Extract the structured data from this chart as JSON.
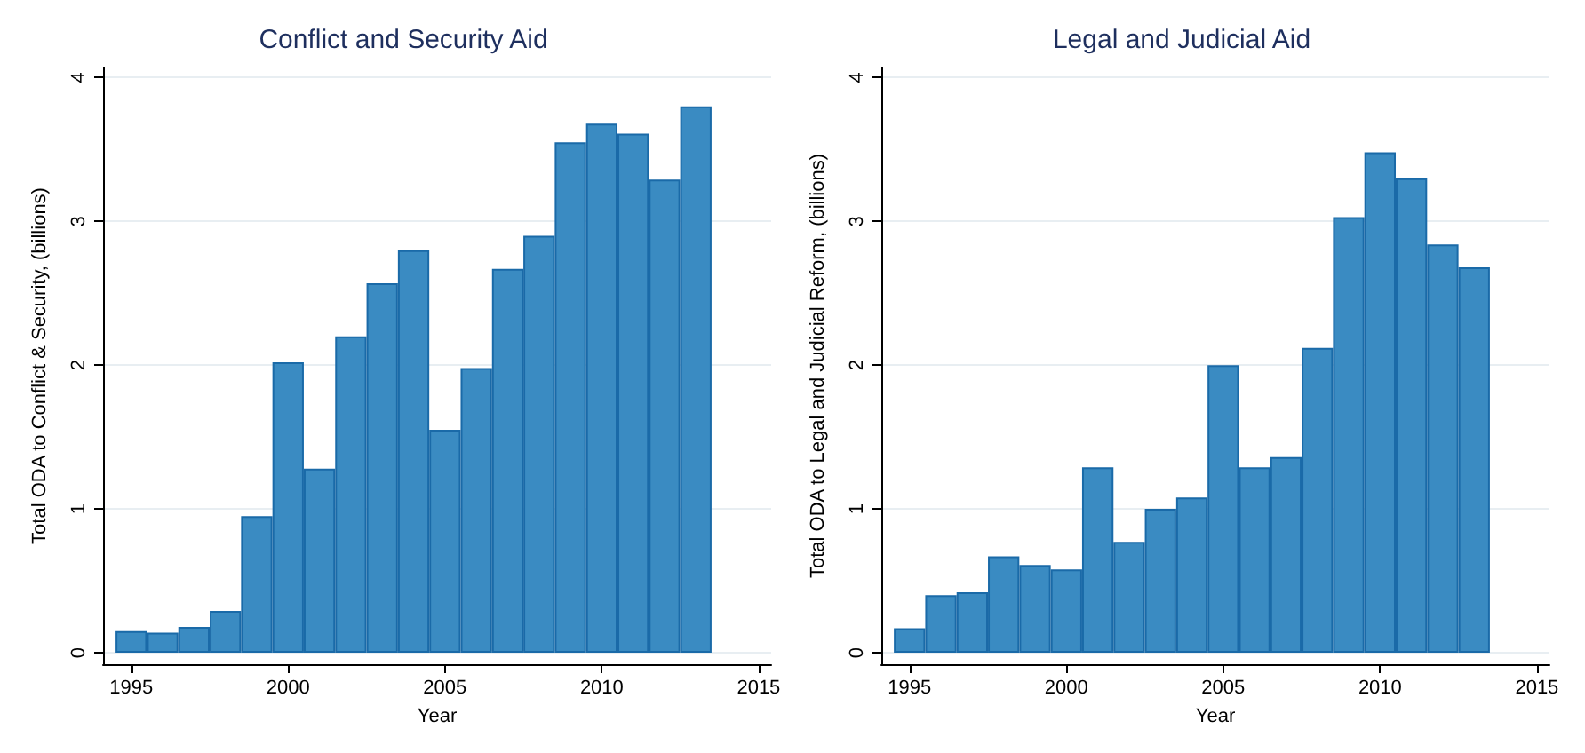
{
  "chart_data": [
    {
      "type": "bar",
      "title": "Conflict and Security Aid",
      "xlabel": "Year",
      "ylabel": "Total ODA to Conflict & Security, (billions)",
      "color": "#3a8bc2",
      "grid": "y",
      "x": [
        1995,
        1996,
        1997,
        1998,
        1999,
        2000,
        2001,
        2002,
        2003,
        2004,
        2005,
        2006,
        2007,
        2008,
        2009,
        2010,
        2011,
        2012,
        2013
      ],
      "values": [
        0.15,
        0.14,
        0.18,
        0.29,
        0.95,
        2.02,
        1.28,
        2.2,
        2.57,
        2.8,
        1.55,
        1.98,
        2.67,
        2.9,
        3.55,
        3.68,
        3.61,
        3.29,
        3.8
      ],
      "xlim": [
        1994.1,
        2015.4
      ],
      "xticks": [
        1995,
        2000,
        2005,
        2010,
        2015
      ],
      "ylim": [
        -0.08,
        4.07
      ],
      "yticks": [
        0,
        1,
        2,
        3,
        4
      ]
    },
    {
      "type": "bar",
      "title": "Legal and Judicial Aid",
      "xlabel": "Year",
      "ylabel": "Total ODA to Legal and Judicial Reform, (billions)",
      "color": "#3a8bc2",
      "grid": "y",
      "x": [
        1995,
        1996,
        1997,
        1998,
        1999,
        2000,
        2001,
        2002,
        2003,
        2004,
        2005,
        2006,
        2007,
        2008,
        2009,
        2010,
        2011,
        2012,
        2013
      ],
      "values": [
        0.17,
        0.4,
        0.42,
        0.67,
        0.61,
        0.58,
        1.29,
        0.77,
        1.0,
        1.08,
        2.0,
        1.29,
        1.36,
        2.12,
        3.03,
        3.48,
        3.3,
        2.84,
        2.68
      ],
      "xlim": [
        1994.1,
        2015.4
      ],
      "xticks": [
        1995,
        2000,
        2005,
        2010,
        2015
      ],
      "ylim": [
        -0.08,
        4.07
      ],
      "yticks": [
        0,
        1,
        2,
        3,
        4
      ]
    }
  ]
}
